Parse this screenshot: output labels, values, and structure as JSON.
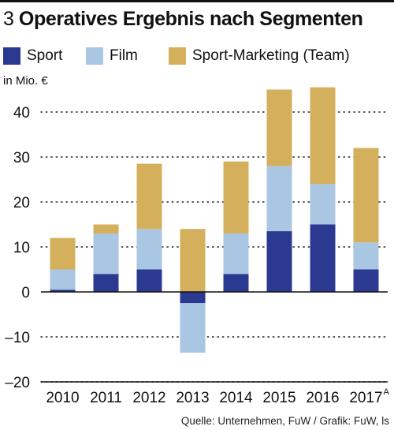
{
  "header": {
    "number": "3",
    "title": "Operatives Ergebnis nach Segmenten"
  },
  "chart_data": {
    "type": "bar",
    "stacked": true,
    "title": "Operatives Ergebnis nach Segmenten",
    "ylabel": "in Mio. €",
    "xlabel": "",
    "categories": [
      "2010",
      "2011",
      "2012",
      "2013",
      "2014",
      "2015",
      "2016",
      "2017"
    ],
    "category_superscript": {
      "2017": "A"
    },
    "series": [
      {
        "name": "Sport",
        "color": "#2b3990",
        "values": [
          0.5,
          4,
          5,
          -2.5,
          4,
          13.5,
          15,
          5
        ]
      },
      {
        "name": "Film",
        "color": "#a9c6e3",
        "values": [
          4.5,
          9,
          9,
          -11,
          9,
          14.5,
          9,
          6
        ]
      },
      {
        "name": "Sport-Marketing (Team)",
        "color": "#d4b05c",
        "values": [
          7,
          2,
          14.5,
          14,
          16,
          17,
          21.5,
          21
        ]
      }
    ],
    "ylim": [
      -20,
      47
    ],
    "yticks": [
      -20,
      -10,
      0,
      10,
      20,
      30,
      40
    ],
    "grid": true,
    "legend": "top"
  },
  "footer": {
    "source": "Quelle: Unternehmen, FuW / Grafik: FuW, ls"
  }
}
